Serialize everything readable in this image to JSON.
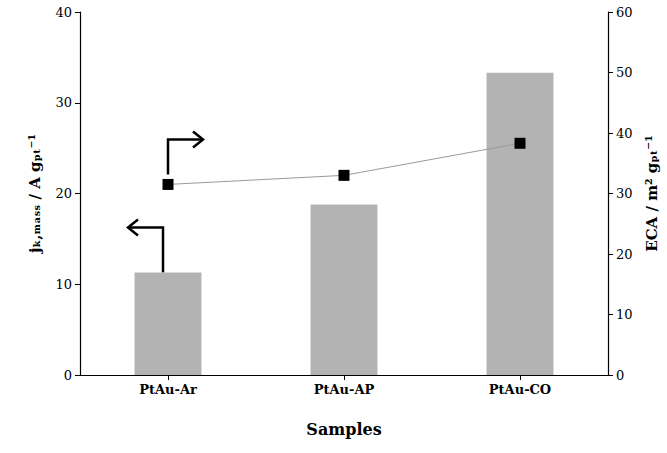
{
  "chart_data": {
    "type": "bar",
    "x_label": "Samples",
    "y_label": "jₖ,ₘₐₛₛ / A gₚₜ⁻¹",
    "y2_label": "ECA / m² gₚₜ⁻¹",
    "categories": [
      "PtAu-Ar",
      "PtAu-AP",
      "PtAu-CO"
    ],
    "series": [
      {
        "type": "bar",
        "color": "#b3b3b3",
        "values": [
          11.3,
          18.8,
          33.3
        ]
      },
      {
        "type": "line",
        "axis": "y2",
        "color": "#000000",
        "marker": "square",
        "line_style": "solid",
        "values": [
          31.5,
          33.0,
          38.3
        ]
      }
    ],
    "ylim": [
      0,
      40
    ],
    "yticks": [
      0,
      10,
      20,
      30,
      40
    ],
    "y2lim": [
      0,
      60
    ],
    "y2ticks": [
      0,
      10,
      20,
      30,
      40,
      50,
      60
    ],
    "grid": false
  }
}
